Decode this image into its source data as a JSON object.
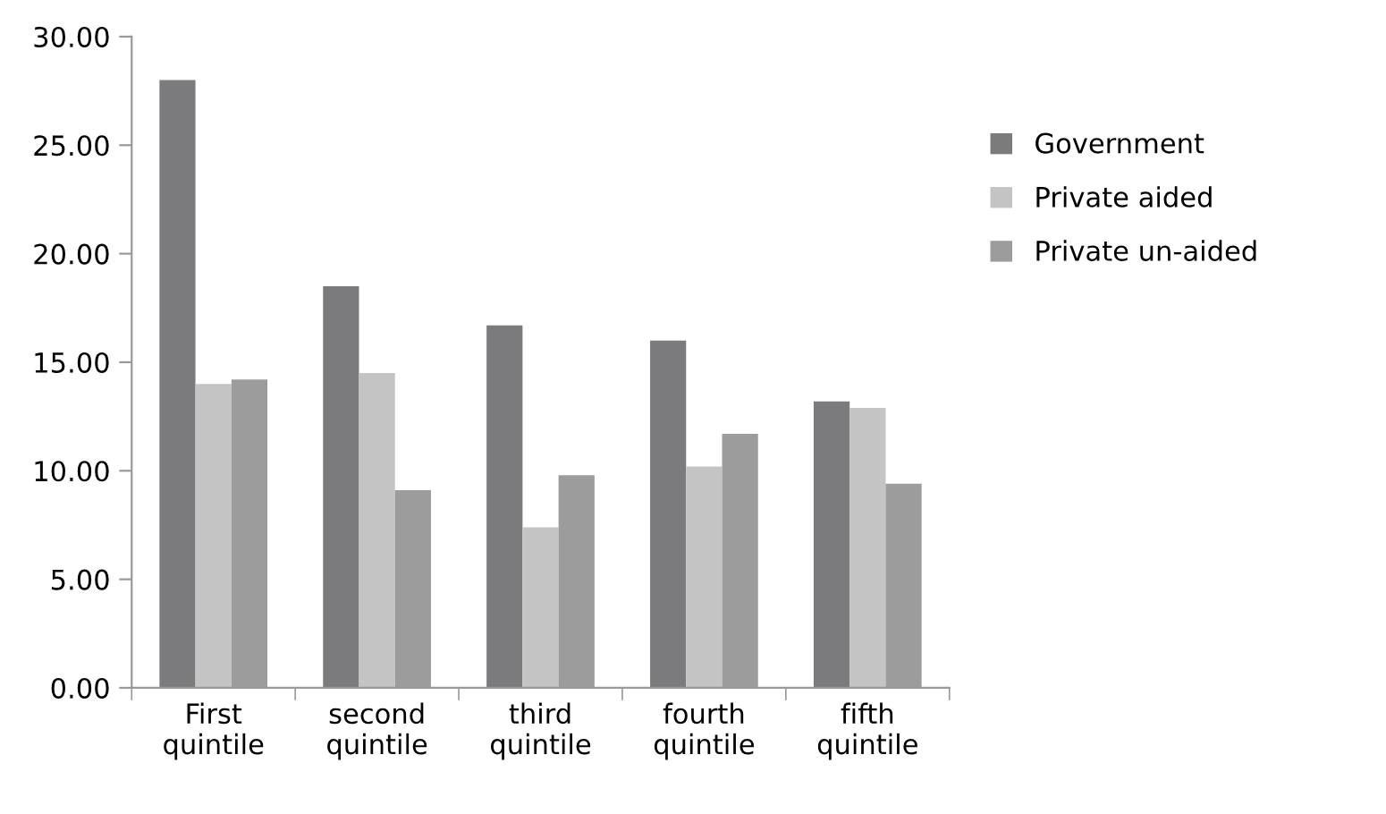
{
  "chart_data": {
    "type": "bar",
    "categories": [
      "First\nquintile",
      "second\nquintile",
      "third\nquintile",
      "fourth\nquintile",
      "fifth\nquintile"
    ],
    "series": [
      {
        "name": "Government",
        "color": "#7b7b7d",
        "values": [
          28.0,
          18.5,
          16.7,
          16.0,
          13.2
        ]
      },
      {
        "name": "Private aided",
        "color": "#c4c4c4",
        "values": [
          14.0,
          14.5,
          7.4,
          10.2,
          12.9
        ]
      },
      {
        "name": "Private un-aided",
        "color": "#9c9c9c",
        "values": [
          14.2,
          9.1,
          9.8,
          11.7,
          9.4
        ]
      }
    ],
    "ylim": [
      0,
      30
    ],
    "yticks": [
      {
        "value": 0,
        "label": "0.00"
      },
      {
        "value": 5,
        "label": "5.00"
      },
      {
        "value": 10,
        "label": "10.00"
      },
      {
        "value": 15,
        "label": "15.00"
      },
      {
        "value": 20,
        "label": "20.00"
      },
      {
        "value": 25,
        "label": "25.00"
      },
      {
        "value": 30,
        "label": "30.00"
      }
    ],
    "grid": false,
    "legend": "right"
  }
}
